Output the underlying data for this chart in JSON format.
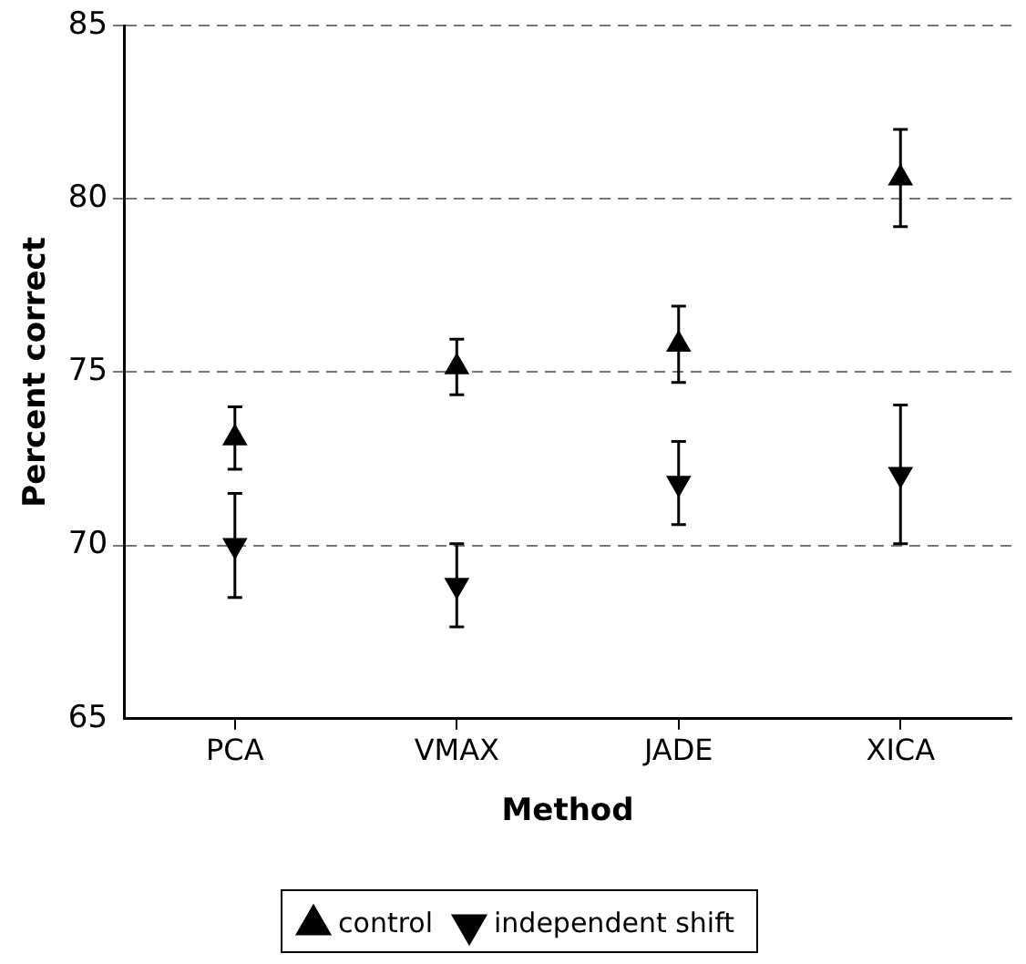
{
  "chart_data": {
    "type": "scatter",
    "xlabel": "Method",
    "ylabel": "Percent correct",
    "categories": [
      "PCA",
      "VMAX",
      "JADE",
      "XICA"
    ],
    "series": [
      {
        "name": "control",
        "color": "#000000",
        "marker": "triangle",
        "values": [
          73.1,
          75.15,
          75.8,
          80.6
        ],
        "errors": [
          0.9,
          0.8,
          1.1,
          1.4
        ]
      },
      {
        "name": "independent shift",
        "color": "#000000",
        "marker": "triangle-down",
        "values": [
          70.0,
          68.85,
          71.8,
          72.05
        ],
        "errors": [
          1.5,
          1.2,
          1.2,
          2.0
        ]
      }
    ],
    "ylim": [
      65,
      85
    ],
    "yticks": [
      65,
      70,
      75,
      80,
      85
    ],
    "grid": "y",
    "legend": "bottom"
  }
}
